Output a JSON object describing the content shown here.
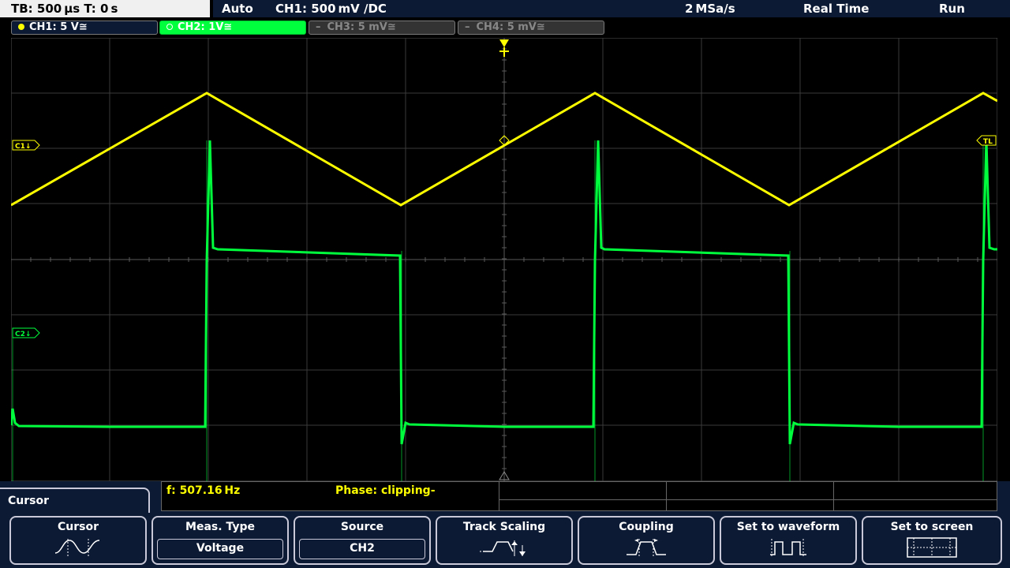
{
  "topbar": {
    "timebase": "TB: 500 µs  T: 0 s",
    "trigger_mode": "Auto",
    "trigger_info": "CH1: 500 mV ∕DC",
    "sample_rate": "2 MSa/s",
    "acq_mode": "Real Time",
    "run_state": "Run"
  },
  "channels": [
    {
      "label": "CH1: 5 V≅",
      "active": true,
      "color": "#ffff00"
    },
    {
      "label": "CH2: 1V≅",
      "active": true,
      "color": "#00ff3c"
    },
    {
      "label": "CH3: 5 mV≅",
      "active": false,
      "color": "#7a7a7a"
    },
    {
      "label": "CH4: 5 mV≅",
      "active": false,
      "color": "#7a7a7a"
    }
  ],
  "screen": {
    "ch1_marker": "C1↓",
    "ch2_marker": "C2↓",
    "trigger_level_marker": "TL",
    "ch1_color": "#ffff00",
    "ch2_color": "#00ff3c"
  },
  "measurements": {
    "frequency": "f: 507.16 Hz",
    "phase": "Phase: clipping-"
  },
  "menu": {
    "title": "Cursor",
    "softkeys": [
      {
        "label": "Cursor",
        "icon": "sine-cursor-icon"
      },
      {
        "label": "Meas. Type",
        "value": "Voltage"
      },
      {
        "label": "Source",
        "value": "CH2"
      },
      {
        "label": "Track Scaling",
        "icon": "track-scaling-icon"
      },
      {
        "label": "Coupling",
        "icon": "coupling-icon"
      },
      {
        "label": "Set to waveform",
        "icon": "square-wave-icon"
      },
      {
        "label": "Set to screen",
        "icon": "screen-box-icon"
      }
    ]
  }
}
